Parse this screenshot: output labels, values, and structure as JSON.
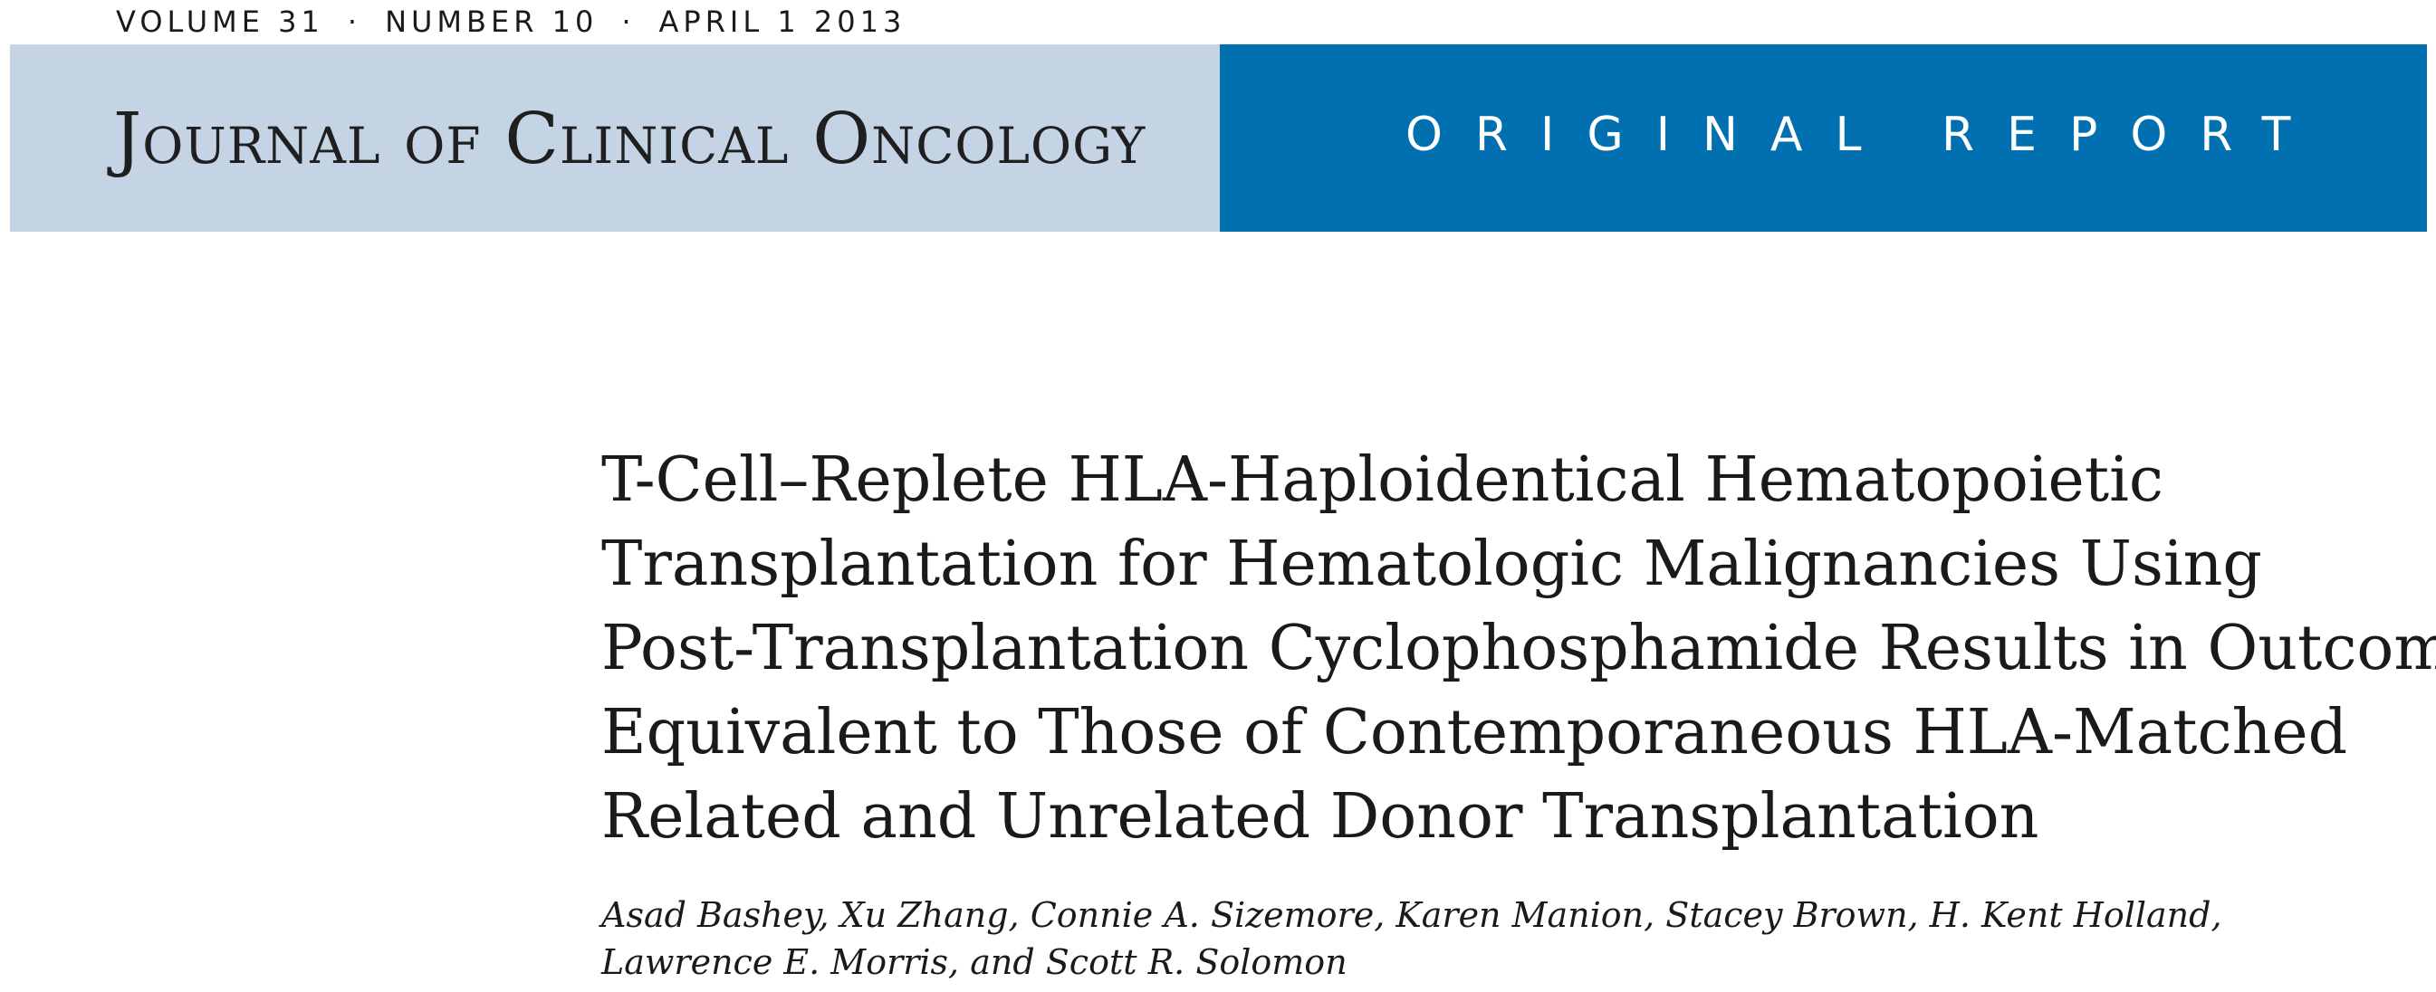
{
  "header": {
    "volume": "VOLUME 31",
    "number": "NUMBER 10",
    "date": "APRIL 1 2013",
    "separator": "·"
  },
  "banner": {
    "journal": "Journal of Clinical Oncology",
    "report_type": "ORIGINAL REPORT",
    "colors": {
      "left_bg": "#c5d4e4",
      "right_bg": "#0070b0"
    }
  },
  "article": {
    "title_lines": [
      "T-Cell–Replete HLA-Haploidentical Hematopoietic",
      "Transplantation for Hematologic Malignancies Using",
      "Post-Transplantation Cyclophosphamide Results in Outcomes",
      "Equivalent to Those of Contemporaneous HLA-Matched",
      "Related and Unrelated Donor Transplantation"
    ],
    "author_lines": [
      "Asad Bashey, Xu Zhang, Connie A. Sizemore, Karen Manion, Stacey Brown, H. Kent Holland,",
      "Lawrence E. Morris, and Scott R. Solomon"
    ]
  }
}
